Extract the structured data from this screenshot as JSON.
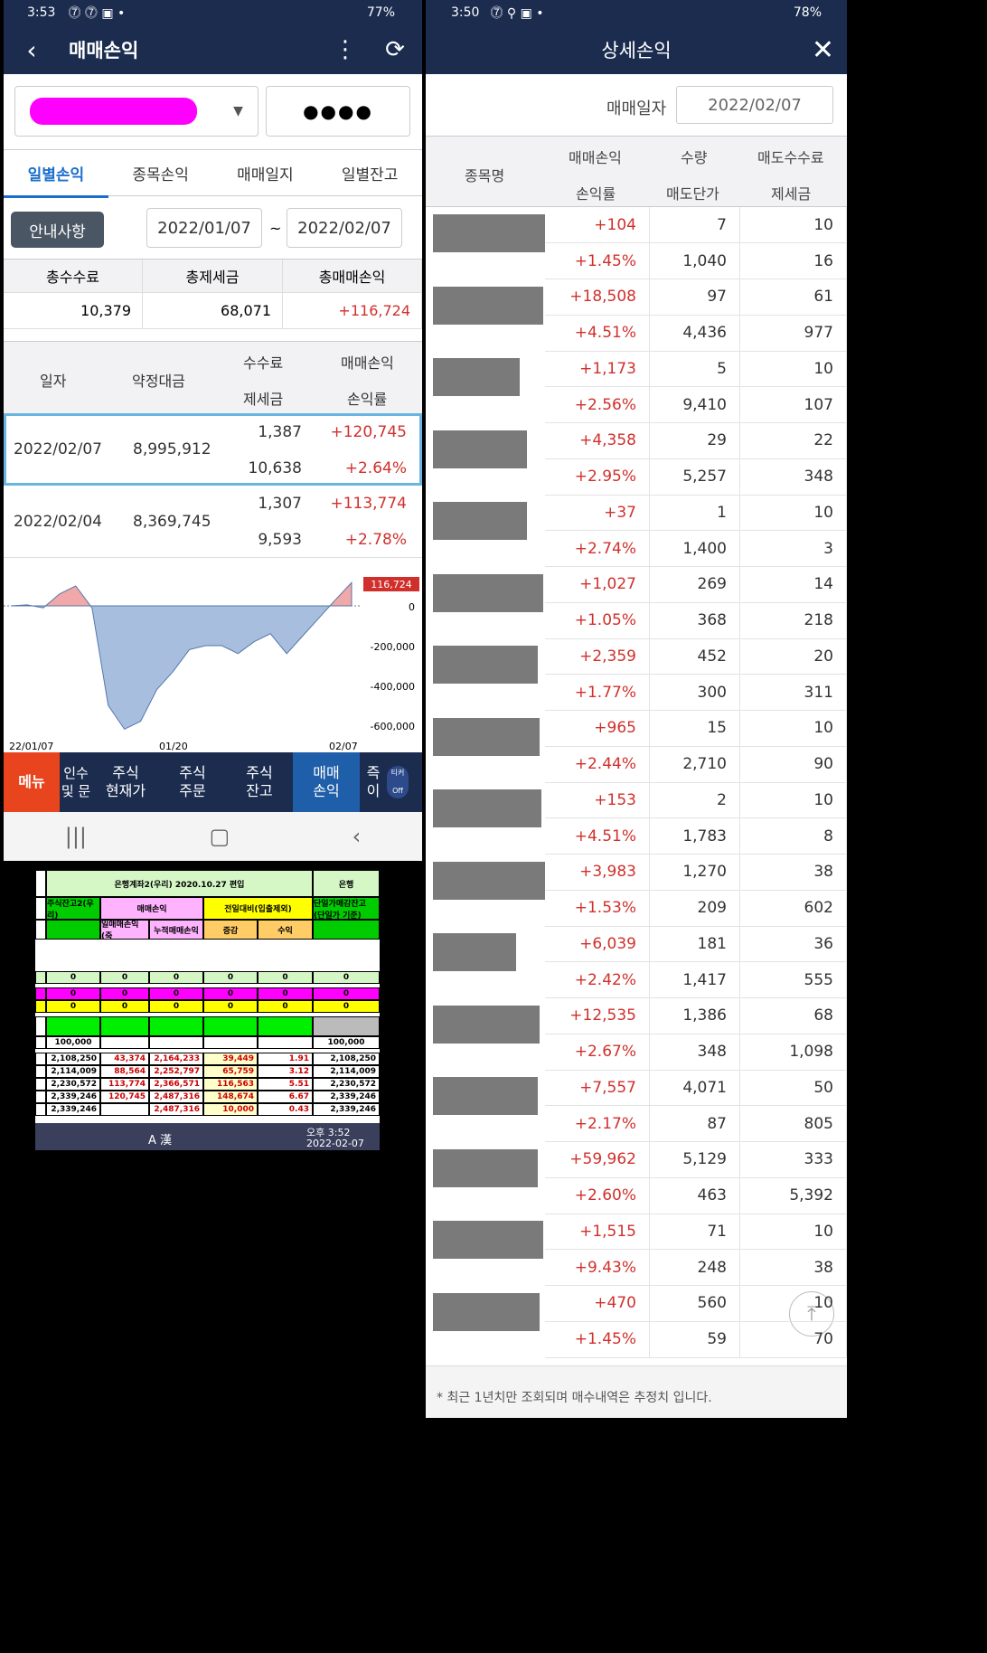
{
  "left_status": {
    "time": "3:53",
    "battery": "77%"
  },
  "left_header": {
    "title": "매매손익"
  },
  "account": {
    "mask": "●●●●"
  },
  "tabs": [
    "일별손익",
    "종목손익",
    "매매일지",
    "일별잔고"
  ],
  "notice_button": "안내사항",
  "date_from": "2022/01/07",
  "date_sep": "~",
  "date_to": "2022/02/07",
  "summary": {
    "headers": [
      "총수수료",
      "총제세금",
      "총매매손익"
    ],
    "values": [
      "10,379",
      "68,071",
      "+116,724"
    ]
  },
  "daily_table": {
    "headers": {
      "date": "일자",
      "amount": "약정대금",
      "fee": "수수료",
      "tax": "제세금",
      "pnl": "매매손익",
      "rate": "손익률"
    },
    "rows": [
      {
        "date": "2022/02/07",
        "amount": "8,995,912",
        "fee": "1,387",
        "tax": "10,638",
        "pnl": "+120,745",
        "rate": "+2.64%"
      },
      {
        "date": "2022/02/04",
        "amount": "8,369,745",
        "fee": "1,307",
        "tax": "9,593",
        "pnl": "+113,774",
        "rate": "+2.78%"
      }
    ]
  },
  "chart_data": {
    "type": "area",
    "x_ticks": [
      "22/01/07",
      "01/20",
      "02/07"
    ],
    "y_ticks": [
      "0",
      "-200,000",
      "-400,000",
      "-600,000"
    ],
    "last_value_label": "116,724",
    "values": [
      0,
      5000,
      -10000,
      60000,
      100000,
      -10000,
      -500000,
      -620000,
      -580000,
      -420000,
      -330000,
      -220000,
      -200000,
      -200000,
      -240000,
      -180000,
      -140000,
      -240000,
      -150000,
      -60000,
      30000,
      116724
    ]
  },
  "bottom_menu": {
    "menu_label": "메뉴",
    "items": [
      "인수 및 문",
      "주식 현재가",
      "주식 주문",
      "주식 잔고",
      "매매 손익",
      "즉 이"
    ],
    "ticker": "티커 Off"
  },
  "excel": {
    "title": "은행계좌2(우리) 2020.10.27 편입",
    "title2": "은행",
    "h1": "주식잔고2(우리)",
    "h2": "매매손익",
    "h3": "전일대비(입출제외)",
    "h4": "단일가매감잔고 (단일가 기준)",
    "sub": [
      "일매매손익(죽",
      "누적매매손익",
      "증감",
      "수익"
    ],
    "zero": "0",
    "base": "100,000",
    "rows": [
      [
        "2,108,250",
        "43,374",
        "2,164,233",
        "39,449",
        "1.91",
        "2,108,250"
      ],
      [
        "2,114,009",
        "88,564",
        "2,252,797",
        "65,759",
        "3.12",
        "2,114,009"
      ],
      [
        "2,230,572",
        "113,774",
        "2,366,571",
        "116,563",
        "5.51",
        "2,230,572"
      ],
      [
        "2,339,246",
        "120,745",
        "2,487,316",
        "148,674",
        "6.67",
        "2,339,246"
      ],
      [
        "2,339,246",
        "",
        "2,487,316",
        "10,000",
        "0.43",
        "2,339,246"
      ]
    ],
    "clock_time": "오후 3:52",
    "clock_date": "2022-02-07",
    "ime": "A 漢"
  },
  "right_status": {
    "time": "3:50",
    "battery": "78%"
  },
  "right_header": {
    "title": "상세손익"
  },
  "trade_date_label": "매매일자",
  "trade_date": "2022/02/07",
  "detail_headers": {
    "name": "종목명",
    "pnl": "매매손익",
    "qty": "수량",
    "fee": "매도수수료",
    "rate": "손익률",
    "price": "매도단가",
    "tax": "제세금"
  },
  "details": [
    [
      "+104",
      "7",
      "10",
      "+1.45%",
      "1,040",
      "16"
    ],
    [
      "+18,508",
      "97",
      "61",
      "+4.51%",
      "4,436",
      "977"
    ],
    [
      "+1,173",
      "5",
      "10",
      "+2.56%",
      "9,410",
      "107"
    ],
    [
      "+4,358",
      "29",
      "22",
      "+2.95%",
      "5,257",
      "348"
    ],
    [
      "+37",
      "1",
      "10",
      "+2.74%",
      "1,400",
      "3"
    ],
    [
      "+1,027",
      "269",
      "14",
      "+1.05%",
      "368",
      "218"
    ],
    [
      "+2,359",
      "452",
      "20",
      "+1.77%",
      "300",
      "311"
    ],
    [
      "+965",
      "15",
      "10",
      "+2.44%",
      "2,710",
      "90"
    ],
    [
      "+153",
      "2",
      "10",
      "+4.51%",
      "1,783",
      "8"
    ],
    [
      "+3,983",
      "1,270",
      "38",
      "+1.53%",
      "209",
      "602"
    ],
    [
      "+6,039",
      "181",
      "36",
      "+2.42%",
      "1,417",
      "555"
    ],
    [
      "+12,535",
      "1,386",
      "68",
      "+2.67%",
      "348",
      "1,098"
    ],
    [
      "+7,557",
      "4,071",
      "50",
      "+2.17%",
      "87",
      "805"
    ],
    [
      "+59,962",
      "5,129",
      "333",
      "+2.60%",
      "463",
      "5,392"
    ],
    [
      "+1,515",
      "71",
      "10",
      "+9.43%",
      "248",
      "38"
    ],
    [
      "+470",
      "560",
      "10",
      "+1.45%",
      "59",
      "70"
    ]
  ],
  "footnote": "* 최근 1년치만 조회되며 매수내역은 추정치 입니다."
}
